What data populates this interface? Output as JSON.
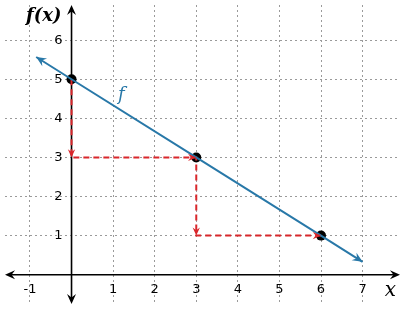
{
  "chart_data": {
    "type": "line",
    "xlabel": "x",
    "ylabel": "f(x)",
    "xlim": [
      -1.6,
      7.9
    ],
    "ylim": [
      -0.75,
      6.9
    ],
    "xticks": [
      -1,
      1,
      2,
      3,
      4,
      5,
      6,
      7
    ],
    "yticks": [
      1,
      2,
      3,
      4,
      5,
      6
    ],
    "grid": true,
    "annotations": [
      {
        "text": "f",
        "x": 1.2,
        "y": 4.6
      }
    ],
    "series": [
      {
        "type": "line",
        "color": "#2878a8",
        "line_style": "solid",
        "marker": "none",
        "x": [
          -0.85,
          0,
          3,
          6,
          7
        ],
        "values": [
          5.57,
          5,
          3,
          1,
          0.33
        ]
      },
      {
        "type": "line",
        "color": "#d9262b",
        "line_style": "dashed",
        "marker": "arrow",
        "x": [
          0,
          0,
          3,
          3,
          6
        ],
        "values": [
          5,
          3,
          3,
          1,
          1
        ]
      },
      {
        "type": "scatter",
        "color": "#000000",
        "marker": "circle",
        "x": [
          0,
          3,
          6
        ],
        "values": [
          5,
          3,
          1
        ]
      }
    ]
  }
}
